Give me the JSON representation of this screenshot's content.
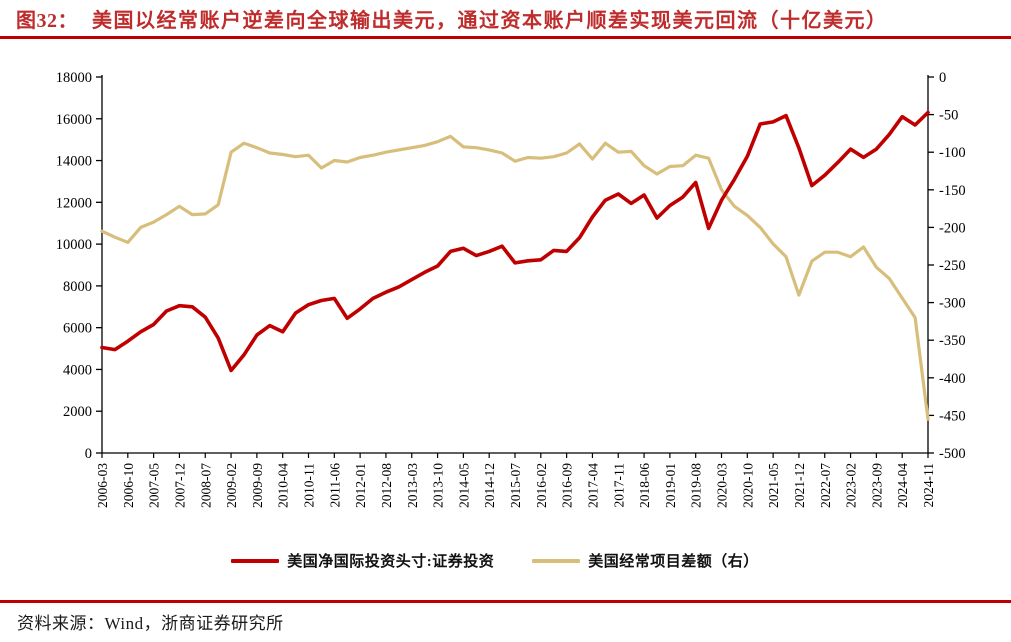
{
  "title": {
    "tag": "图32：",
    "text": "美国以经常账户逆差向全球输出美元，通过资本账户顺差实现美元回流（十亿美元）"
  },
  "legend": [
    {
      "label": "美国净国际投资头寸:证券投资",
      "color": "#c00000"
    },
    {
      "label": "美国经常项目差额（右）",
      "color": "#d8be7b"
    }
  ],
  "footer": {
    "text": "资料来源：Wind，浙商证券研究所"
  },
  "chart_data": {
    "type": "line",
    "title": "美国以经常账户逆差向全球输出美元，通过资本账户顺差实现美元回流（十亿美元）",
    "xlabel": "",
    "ylabel_left": "",
    "ylabel_right": "",
    "grid": false,
    "legend_position": "bottom",
    "left_axis": {
      "min": 0,
      "max": 18000,
      "step": 2000,
      "tick_labels": [
        "18000",
        "16000",
        "14000",
        "12000",
        "10000",
        "8000",
        "6000",
        "4000",
        "2000",
        "0"
      ]
    },
    "right_axis": {
      "min": -500,
      "max": 0,
      "step": 50,
      "tick_labels": [
        "0",
        "-50",
        "-100",
        "-150",
        "-200",
        "-250",
        "-300",
        "-350",
        "-400",
        "-450",
        "-500"
      ]
    },
    "x_tick_labels": [
      "2006-03",
      "2006-10",
      "2007-05",
      "2007-12",
      "2008-07",
      "2009-02",
      "2009-09",
      "2010-04",
      "2010-11",
      "2011-06",
      "2012-01",
      "2012-08",
      "2013-03",
      "2013-10",
      "2014-05",
      "2014-12",
      "2015-07",
      "2016-02",
      "2016-09",
      "2017-04",
      "2017-11",
      "2018-06",
      "2019-01",
      "2019-08",
      "2020-03",
      "2020-10",
      "2021-05",
      "2021-12",
      "2022-07",
      "2023-02",
      "2023-09",
      "2024-04",
      "2024-11"
    ],
    "series": [
      {
        "name": "美国净国际投资头寸:证券投资",
        "axis": "left",
        "color": "#c00000",
        "values": [
          5050,
          4950,
          5350,
          5800,
          6150,
          6800,
          7050,
          7000,
          6500,
          5500,
          3950,
          4700,
          5650,
          6100,
          5800,
          6700,
          7100,
          7300,
          7400,
          6450,
          6900,
          7400,
          7700,
          7950,
          8300,
          8650,
          8950,
          9650,
          9800,
          9450,
          9650,
          9900,
          9100,
          9200,
          9250,
          9700,
          9650,
          10300,
          11300,
          12100,
          12400,
          11950,
          12350,
          11250,
          11850,
          12250,
          12950,
          10750,
          12100,
          13100,
          14200,
          15750,
          15850,
          16150,
          14600,
          12800,
          13300,
          13900,
          14550,
          14150,
          14550,
          15250,
          16100,
          15700,
          16300
        ]
      },
      {
        "name": "美国经常项目差额（右）",
        "axis": "right",
        "color": "#d8be7b",
        "values": [
          -205,
          -213,
          -220,
          -200,
          -193,
          -183,
          -172,
          -183,
          -182,
          -170,
          -100,
          -88,
          -94,
          -101,
          -103,
          -106,
          -104,
          -121,
          -111,
          -113,
          -107,
          -104,
          -100,
          -97,
          -94,
          -91,
          -86,
          -79,
          -93,
          -94,
          -97,
          -101,
          -112,
          -107,
          -108,
          -106,
          -101,
          -89,
          -109,
          -88,
          -100,
          -99,
          -118,
          -129,
          -119,
          -118,
          -104,
          -108,
          -150,
          -172,
          -184,
          -200,
          -222,
          -239,
          -290,
          -245,
          -233,
          -233,
          -239,
          -226,
          -253,
          -268,
          -294,
          -320,
          -455
        ]
      }
    ]
  }
}
